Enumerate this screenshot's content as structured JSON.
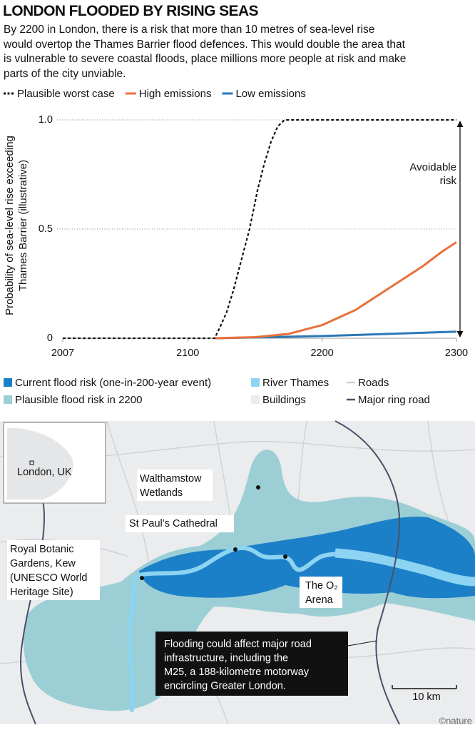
{
  "chart_data": {
    "type": "line",
    "title": "LONDON FLOODED BY RISING SEAS",
    "subtitle": "By 2200 in London, there is a risk that more than 10 metres of sea-level rise would overtop the Thames Barrier flood defences. This would double the area that is vulnerable to severe coastal floods, place millions more people at risk and make parts of the city unviable.",
    "ylabel": [
      "Probability of sea-level rise exceeding",
      "Thames Barrier (illustrative)"
    ],
    "annotation": [
      "Avoidable",
      "risk"
    ],
    "xlim": [
      2007,
      2300
    ],
    "xticks": [
      2007,
      2100,
      2200,
      2300
    ],
    "ylim": [
      0,
      1
    ],
    "yticks": [
      0,
      0.5,
      {
        "value": 1,
        "label": "1.0"
      }
    ],
    "grid": true,
    "series": [
      {
        "name": "Plausible worst case",
        "color": "#111111",
        "dashed": true,
        "x": [
          2007,
          2120,
          2124,
          2129,
          2134,
          2140,
          2146,
          2152,
          2157,
          2162,
          2167,
          2172,
          2300
        ],
        "values": [
          0,
          0,
          0.05,
          0.12,
          0.22,
          0.36,
          0.5,
          0.68,
          0.8,
          0.9,
          0.97,
          1,
          1
        ]
      },
      {
        "name": "High emissions",
        "color": "#e8703a",
        "x": [
          2120,
          2150,
          2175,
          2200,
          2225,
          2250,
          2275,
          2290,
          2300
        ],
        "values": [
          0,
          0.005,
          0.02,
          0.06,
          0.13,
          0.23,
          0.33,
          0.4,
          0.44
        ]
      },
      {
        "name": "Low emissions",
        "color": "#2a78b8",
        "x": [
          2120,
          2200,
          2250,
          2300
        ],
        "values": [
          0,
          0.01,
          0.02,
          0.03
        ]
      }
    ]
  },
  "map": {
    "legend": [
      {
        "label": "Current flood risk (one-in-200-year event)",
        "color": "#1c80c9",
        "shape": "square"
      },
      {
        "label": "Plausible flood risk in 2200",
        "color": "#9ccfd5",
        "shape": "square"
      },
      {
        "label": "River Thames",
        "color": "#8dd4f2",
        "shape": "square"
      },
      {
        "label": "Roads",
        "color": "#cdd0d4",
        "shape": "line"
      },
      {
        "label": "Buildings",
        "color": "#eaecee",
        "shape": "square"
      },
      {
        "label": "Major ring road",
        "color": "#4a5068",
        "shape": "line"
      }
    ],
    "inset_label": "London, UK",
    "places": [
      {
        "lines": [
          "Walthamstow",
          "Wetlands"
        ]
      },
      {
        "lines": [
          "St Paul’s Cathedral"
        ]
      },
      {
        "lines": [
          "Royal Botanic",
          "Gardens, Kew",
          "(UNESCO World",
          "Heritage Site)"
        ]
      },
      {
        "lines": [
          "The O₂",
          "Arena"
        ]
      }
    ],
    "callout": [
      "Flooding could affect major road",
      "infrastructure, including the",
      "M25, a 188-kilometre motorway",
      "encircling Greater London."
    ],
    "scale": "10 km",
    "credit": "©nature"
  }
}
